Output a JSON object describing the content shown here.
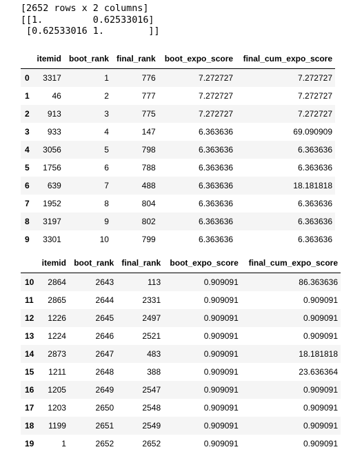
{
  "stdout": {
    "lines": [
      "[2652 rows x 2 columns]",
      "[[1.         0.62533016]",
      " [0.62533016 1.        ]]"
    ]
  },
  "tables": [
    {
      "columns": [
        "",
        "itemid",
        "boot_rank",
        "final_rank",
        "boot_expo_score",
        "final_cum_expo_score"
      ],
      "rows": [
        [
          "0",
          "3317",
          "1",
          "776",
          "7.272727",
          "7.272727"
        ],
        [
          "1",
          "46",
          "2",
          "777",
          "7.272727",
          "7.272727"
        ],
        [
          "2",
          "913",
          "3",
          "775",
          "7.272727",
          "7.272727"
        ],
        [
          "3",
          "933",
          "4",
          "147",
          "6.363636",
          "69.090909"
        ],
        [
          "4",
          "3056",
          "5",
          "798",
          "6.363636",
          "6.363636"
        ],
        [
          "5",
          "1756",
          "6",
          "788",
          "6.363636",
          "6.363636"
        ],
        [
          "6",
          "639",
          "7",
          "488",
          "6.363636",
          "18.181818"
        ],
        [
          "7",
          "1952",
          "8",
          "804",
          "6.363636",
          "6.363636"
        ],
        [
          "8",
          "3197",
          "9",
          "802",
          "6.363636",
          "6.363636"
        ],
        [
          "9",
          "3301",
          "10",
          "799",
          "6.363636",
          "6.363636"
        ]
      ]
    },
    {
      "columns": [
        "",
        "itemid",
        "boot_rank",
        "final_rank",
        "boot_expo_score",
        "final_cum_expo_score"
      ],
      "rows": [
        [
          "10",
          "2864",
          "2643",
          "113",
          "0.909091",
          "86.363636"
        ],
        [
          "11",
          "2865",
          "2644",
          "2331",
          "0.909091",
          "0.909091"
        ],
        [
          "12",
          "1226",
          "2645",
          "2497",
          "0.909091",
          "0.909091"
        ],
        [
          "13",
          "1224",
          "2646",
          "2521",
          "0.909091",
          "0.909091"
        ],
        [
          "14",
          "2873",
          "2647",
          "483",
          "0.909091",
          "18.181818"
        ],
        [
          "15",
          "1211",
          "2648",
          "388",
          "0.909091",
          "23.636364"
        ],
        [
          "16",
          "1205",
          "2649",
          "2547",
          "0.909091",
          "0.909091"
        ],
        [
          "17",
          "1203",
          "2650",
          "2548",
          "0.909091",
          "0.909091"
        ],
        [
          "18",
          "1199",
          "2651",
          "2549",
          "0.909091",
          "0.909091"
        ],
        [
          "19",
          "1",
          "2652",
          "2652",
          "0.909091",
          "0.909091"
        ]
      ]
    }
  ]
}
